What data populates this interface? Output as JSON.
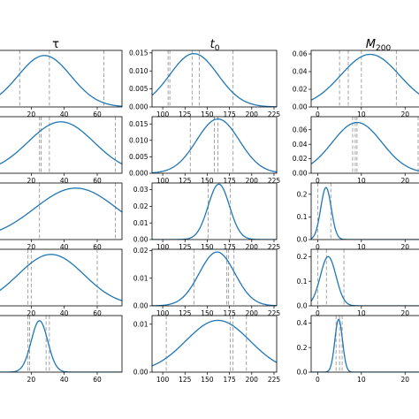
{
  "figure": {
    "columns": [
      {
        "key": "tau",
        "title": "τ",
        "title_main": "τ",
        "title_sub": ""
      },
      {
        "key": "t0",
        "title": "t0",
        "title_main": "t",
        "title_sub": "0"
      },
      {
        "key": "M200",
        "title": "M200",
        "title_main": "M",
        "title_sub": "200"
      }
    ]
  },
  "chart_data": [
    {
      "type": "line",
      "row": 0,
      "col": 0,
      "xlim": [
        0,
        75
      ],
      "ylim": [
        0,
        1.1
      ],
      "xticks": [
        20,
        40,
        60
      ],
      "yticks": [],
      "curve": {
        "mu": 28,
        "sigma": 16
      },
      "vlines": [
        0.5,
        13,
        31,
        64
      ]
    },
    {
      "type": "line",
      "row": 0,
      "col": 1,
      "xlim": [
        88,
        228
      ],
      "ylim": [
        0,
        0.0157
      ],
      "xticks": [
        100,
        125,
        150,
        175,
        200,
        225
      ],
      "yticks": [
        0.0,
        0.005,
        0.01,
        0.015
      ],
      "curve": {
        "mu": 135,
        "sigma": 27,
        "peak": 0.0148
      },
      "vlines": [
        106,
        108,
        133,
        141,
        179
      ]
    },
    {
      "type": "line",
      "row": 0,
      "col": 2,
      "xlim": [
        -1.5,
        24
      ],
      "ylim": [
        0,
        0.064
      ],
      "xticks": [
        0,
        10,
        20
      ],
      "yticks": [
        0.0,
        0.02,
        0.04,
        0.06
      ],
      "curve": {
        "mu": 12,
        "sigma": 6.7,
        "peak": 0.0595
      },
      "vlines": [
        5,
        7,
        10,
        18
      ]
    },
    {
      "type": "line",
      "row": 1,
      "col": 0,
      "xlim": [
        0,
        75
      ],
      "ylim": [
        0,
        1.1
      ],
      "xticks": [
        20,
        40,
        60
      ],
      "yticks": [],
      "curve": {
        "mu": 38,
        "sigma": 20
      },
      "vlines": [
        25,
        26,
        31,
        71
      ]
    },
    {
      "type": "line",
      "row": 1,
      "col": 1,
      "xlim": [
        88,
        228
      ],
      "ylim": [
        0,
        0.0172
      ],
      "xticks": [
        100,
        125,
        150,
        175,
        200,
        225
      ],
      "yticks": [
        0.0,
        0.005,
        0.01,
        0.015
      ],
      "curve": {
        "mu": 162,
        "sigma": 24,
        "peak": 0.0165
      },
      "vlines": [
        131,
        158,
        162,
        179
      ]
    },
    {
      "type": "line",
      "row": 1,
      "col": 2,
      "xlim": [
        -1.5,
        24
      ],
      "ylim": [
        0,
        0.078
      ],
      "xticks": [
        0,
        10,
        20
      ],
      "yticks": [
        0.0,
        0.02,
        0.04,
        0.06
      ],
      "curve": {
        "mu": 9,
        "sigma": 5.7,
        "peak": 0.07
      },
      "vlines": [
        8,
        8.6,
        9,
        23
      ]
    },
    {
      "type": "line",
      "row": 2,
      "col": 0,
      "xlim": [
        0,
        75
      ],
      "ylim": [
        0,
        1.1
      ],
      "xticks": [
        20,
        40,
        60
      ],
      "yticks": [],
      "curve": {
        "mu": 47,
        "sigma": 25
      },
      "vlines": [
        25,
        71
      ]
    },
    {
      "type": "line",
      "row": 2,
      "col": 1,
      "xlim": [
        88,
        228
      ],
      "ylim": [
        0,
        0.034
      ],
      "xticks": [
        100,
        125,
        150,
        175,
        200,
        225
      ],
      "yticks": [
        0.0,
        0.01,
        0.02,
        0.03
      ],
      "curve": {
        "mu": 163,
        "sigma": 12,
        "peak": 0.0333
      },
      "vlines": [
        151,
        176
      ]
    },
    {
      "type": "line",
      "row": 2,
      "col": 2,
      "xlim": [
        -1.5,
        24
      ],
      "ylim": [
        0,
        0.25
      ],
      "xticks": [
        0,
        10,
        20
      ],
      "yticks": [
        0.0,
        0.1,
        0.2
      ],
      "curve": {
        "mu": 1.9,
        "sigma": 1.2,
        "peak": 0.23
      },
      "vlines": [
        0,
        3
      ]
    },
    {
      "type": "line",
      "row": 3,
      "col": 0,
      "xlim": [
        0,
        75
      ],
      "ylim": [
        0,
        1.1
      ],
      "xticks": [
        20,
        40,
        60
      ],
      "yticks": [],
      "curve": {
        "mu": 32,
        "sigma": 20
      },
      "vlines": [
        18,
        20,
        60
      ]
    },
    {
      "type": "line",
      "row": 3,
      "col": 1,
      "xlim": [
        88,
        228
      ],
      "ylim": [
        0,
        0.0205
      ],
      "xticks": [
        100,
        125,
        150,
        175,
        200,
        225
      ],
      "yticks": [
        0.0,
        0.01,
        0.02
      ],
      "curve": {
        "mu": 161,
        "sigma": 20,
        "peak": 0.0195
      },
      "vlines": [
        135,
        172,
        174,
        180
      ]
    },
    {
      "type": "line",
      "row": 3,
      "col": 2,
      "xlim": [
        -1.5,
        24
      ],
      "ylim": [
        0,
        0.23
      ],
      "xticks": [
        0,
        10,
        20
      ],
      "yticks": [
        0.0,
        0.1,
        0.2
      ],
      "curve": {
        "mu": 2.4,
        "sigma": 1.8,
        "peak": 0.2
      },
      "vlines": [
        0,
        2,
        6
      ]
    },
    {
      "type": "line",
      "row": 4,
      "col": 0,
      "xlim": [
        0,
        75
      ],
      "ylim": [
        0,
        1.1
      ],
      "xticks": [
        20,
        40,
        60
      ],
      "yticks": [],
      "curve": {
        "mu": 25,
        "sigma": 5
      },
      "vlines": [
        18,
        19,
        29,
        31
      ]
    },
    {
      "type": "line",
      "row": 4,
      "col": 1,
      "xlim": [
        88,
        228
      ],
      "ylim": [
        0,
        0.0118
      ],
      "xticks": [
        100,
        125,
        150,
        175,
        200,
        225
      ],
      "yticks": [
        0.0,
        0.01
      ],
      "curve": {
        "mu": 162,
        "sigma": 36,
        "peak": 0.0108
      },
      "vlines": [
        104,
        176,
        179,
        194
      ]
    },
    {
      "type": "line",
      "row": 4,
      "col": 2,
      "xlim": [
        -1.5,
        24
      ],
      "ylim": [
        0,
        0.46
      ],
      "xticks": [
        0,
        10,
        20
      ],
      "yticks": [
        0.0,
        0.2,
        0.4
      ],
      "curve": {
        "mu": 4.8,
        "sigma": 0.87,
        "peak": 0.43
      },
      "vlines": [
        4.2,
        5,
        5.6
      ]
    }
  ]
}
